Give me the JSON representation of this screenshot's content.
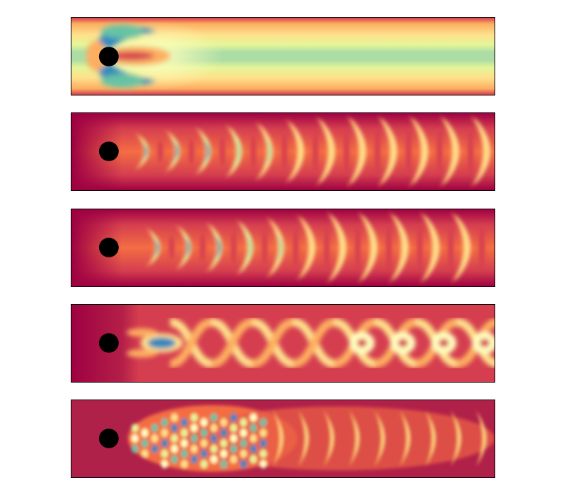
{
  "colors": {
    "background": "#ffffff",
    "frame": "#000000",
    "cylinder": "#000000",
    "colormap": [
      "#9e0142",
      "#d53e4f",
      "#f46d43",
      "#fdae61",
      "#fee08b",
      "#ffffbf",
      "#e6f598",
      "#abdda4",
      "#66c2a5",
      "#3288bd"
    ]
  },
  "panels": [
    {
      "id": "mean-flow",
      "pattern": "mean-recirculation-wake"
    },
    {
      "id": "mode-1",
      "pattern": "periodic-chevron-wake"
    },
    {
      "id": "mode-2",
      "pattern": "periodic-chevron-wake-shifted"
    },
    {
      "id": "mode-3",
      "pattern": "braided-wake"
    },
    {
      "id": "mode-4",
      "pattern": "high-frequency-near-wake"
    }
  ]
}
